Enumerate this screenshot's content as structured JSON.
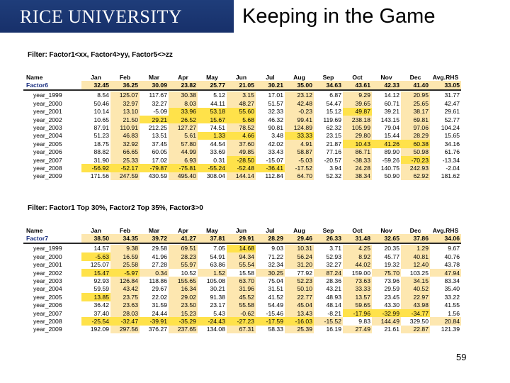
{
  "header": {
    "logo": "RICE UNIVERSITY",
    "title": "Keeping in the Game"
  },
  "months": [
    "Name",
    "Jan",
    "Feb",
    "Mar",
    "Apr",
    "May",
    "Jun",
    "Jul",
    "Aug",
    "Sep",
    "Oct",
    "Nov",
    "Dec",
    "Avg.RHS"
  ],
  "tables": [
    {
      "filter": "Filter: Factor1<xx, Factor4>yy, Factor5<>zz",
      "factor_row": [
        "Factor6",
        "32.45",
        "36.25",
        "30.09",
        "23.82",
        "25.77",
        "21.05",
        "30.21",
        "35.00",
        "34.63",
        "43.61",
        "42.33",
        "41.40",
        "33.05"
      ],
      "rows": [
        [
          "year_1999",
          "8.54",
          "125.07",
          "117.67",
          "30.38",
          "5.12",
          "3.15",
          "17.01",
          "23.12",
          "6.87",
          "9.29",
          "14.12",
          "20.95",
          "31.77"
        ],
        [
          "year_2000",
          "50.46",
          "32.97",
          "32.27",
          "8.03",
          "44.11",
          "48.27",
          "51.57",
          "42.48",
          "54.47",
          "39.65",
          "60.71",
          "25.65",
          "42.47"
        ],
        [
          "year_2001",
          "10.14",
          "13.10",
          "-5.09",
          "33.96",
          "53.18",
          "55.60",
          "32.33",
          "-0.23",
          "15.12",
          "49.87",
          "39.21",
          "38.17",
          "29.61"
        ],
        [
          "year_2002",
          "10.65",
          "21.50",
          "29.21",
          "26.52",
          "15.67",
          "5.68",
          "46.32",
          "99.41",
          "119.69",
          "238.18",
          "143.15",
          "69.81",
          "52.77"
        ],
        [
          "year_2003",
          "87.91",
          "110.91",
          "212.25",
          "127.27",
          "74.51",
          "78.52",
          "90.81",
          "124.89",
          "62.32",
          "105.99",
          "79.04",
          "97.06",
          "104.24"
        ],
        [
          "year_2004",
          "51.23",
          "46.83",
          "13.51",
          "5.61",
          "1.33",
          "4.66",
          "3.48",
          "33.33",
          "23.15",
          "29.80",
          "15.44",
          "28.29",
          "15.65"
        ],
        [
          "year_2005",
          "18.75",
          "32.92",
          "37.45",
          "57.80",
          "44.54",
          "37.60",
          "42.02",
          "4.91",
          "21.87",
          "10.43",
          "41.26",
          "60.38",
          "34.16"
        ],
        [
          "year_2006",
          "88.82",
          "66.65",
          "60.05",
          "44.99",
          "33.69",
          "49.85",
          "33.43",
          "58.87",
          "77.16",
          "86.71",
          "89.90",
          "50.98",
          "61.76"
        ],
        [
          "year_2007",
          "31.90",
          "25.33",
          "17.02",
          "6.93",
          "0.31",
          "-28.50",
          "-15.07",
          "-5.03",
          "-20.57",
          "-38.33",
          "-59.26",
          "-70.23",
          "-13.34"
        ],
        [
          "year_2008",
          "-56.92",
          "-52.17",
          "-79.87",
          "-75.81",
          "-55.24",
          "-52.48",
          "-36.41",
          "-17.52",
          "3.94",
          "24.28",
          "140.75",
          "242.93",
          "-2.04"
        ],
        [
          "year_2009",
          "171.56",
          "247.59",
          "430.59",
          "495.40",
          "308.04",
          "144.14",
          "112.84",
          "64.70",
          "52.32",
          "38.34",
          "50.90",
          "62.92",
          "181.62"
        ]
      ]
    },
    {
      "filter": "Filter: Factor1 Top 30%, Factor2 Top 35%, Factor3>0",
      "factor_row": [
        "Factor7",
        "38.50",
        "34.35",
        "39.72",
        "41.27",
        "37.81",
        "29.91",
        "28.29",
        "29.46",
        "26.33",
        "31.48",
        "32.65",
        "37.86",
        "34.06"
      ],
      "rows": [
        [
          "year_1999",
          "14.57",
          "9.38",
          "29.58",
          "69.51",
          "7.05",
          "14.68",
          "9.03",
          "10.31",
          "3.71",
          "4.25",
          "20.35",
          "1.29",
          "9.67"
        ],
        [
          "year_2000",
          "-5.63",
          "16.59",
          "41.96",
          "28.23",
          "54.91",
          "94.34",
          "71.22",
          "56.24",
          "52.93",
          "8.92",
          "45.77",
          "40.81",
          "40.76"
        ],
        [
          "year_2001",
          "125.07",
          "25.58",
          "27.28",
          "55.97",
          "63.86",
          "55.54",
          "32.34",
          "31.20",
          "32.27",
          "44.02",
          "19.32",
          "12.40",
          "43.78"
        ],
        [
          "year_2002",
          "15.47",
          "-5.97",
          "0.34",
          "10.52",
          "1.52",
          "15.58",
          "30.25",
          "77.92",
          "87.24",
          "159.00",
          "75.70",
          "103.25",
          "47.94"
        ],
        [
          "year_2003",
          "92.93",
          "126.84",
          "118.86",
          "155.65",
          "105.08",
          "63.70",
          "75.04",
          "52.23",
          "28.36",
          "73.63",
          "73.96",
          "34.15",
          "83.34"
        ],
        [
          "year_2004",
          "59.59",
          "43.42",
          "29.67",
          "16.34",
          "30.21",
          "31.96",
          "31.51",
          "50.10",
          "43.21",
          "33.33",
          "29.59",
          "40.52",
          "35.40"
        ],
        [
          "year_2005",
          "13.85",
          "23.75",
          "22.02",
          "29.02",
          "91.38",
          "45.52",
          "41.52",
          "22.77",
          "48.93",
          "13.57",
          "23.45",
          "22.97",
          "33.22"
        ],
        [
          "year_2006",
          "36.42",
          "23.63",
          "31.59",
          "23.50",
          "23.17",
          "55.58",
          "54.49",
          "45.04",
          "48.14",
          "59.65",
          "43.30",
          "43.98",
          "41.55"
        ],
        [
          "year_2007",
          "37.40",
          "28.03",
          "24.44",
          "15.23",
          "5.43",
          "-0.62",
          "-15.46",
          "13.43",
          "-8.21",
          "-17.96",
          "-32.99",
          "-34.77",
          "1.56"
        ],
        [
          "year_2008",
          "-25.54",
          "-32.47",
          "-39.91",
          "-35.29",
          "-24.43",
          "-27.23",
          "-17.59",
          "-16.03",
          "-15.52",
          "9.83",
          "144.49",
          "329.50",
          "20.84"
        ],
        [
          "year_2009",
          "192.09",
          "297.56",
          "376.27",
          "237.65",
          "134.08",
          "67.31",
          "58.33",
          "25.39",
          "16.19",
          "27.49",
          "21.61",
          "22.87",
          "121.39"
        ]
      ]
    }
  ],
  "page_number": "59"
}
